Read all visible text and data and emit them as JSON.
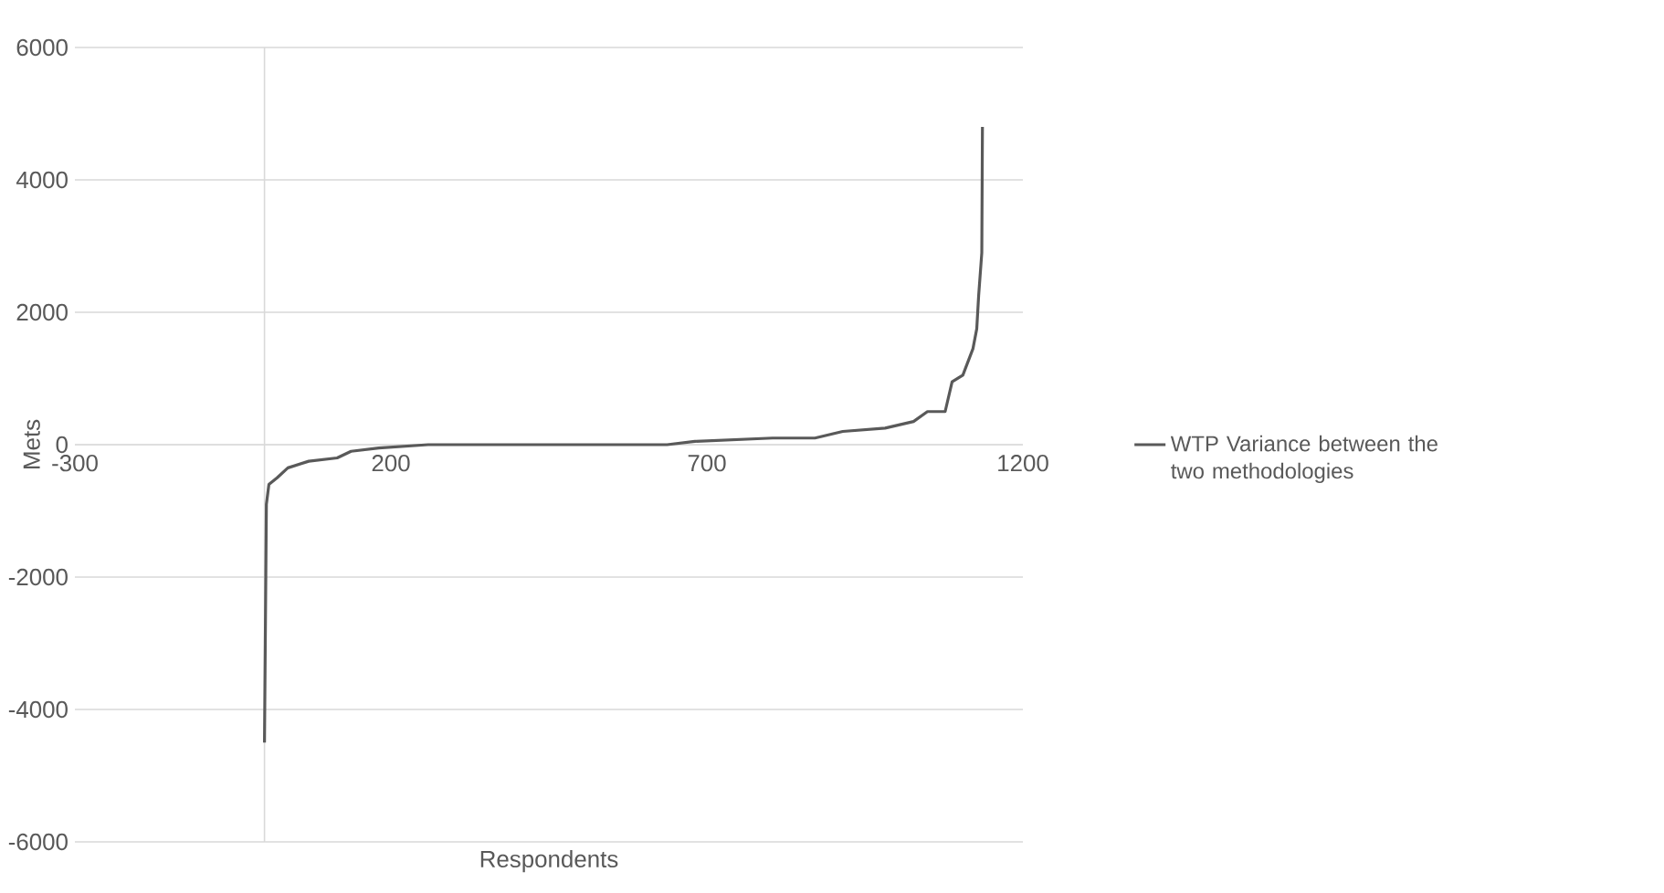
{
  "chart_data": {
    "type": "line",
    "xlabel": "Respondents",
    "ylabel": "Mets",
    "xlim": [
      -300,
      1200
    ],
    "xticks": [
      -300,
      200,
      700,
      1200
    ],
    "ylim": [
      -6000,
      6000
    ],
    "yticks": [
      -6000,
      -4000,
      -2000,
      0,
      2000,
      4000,
      6000
    ],
    "grid": "y",
    "legend": "right",
    "marker": "none",
    "line_style": "solid",
    "series": [
      {
        "name": "WTP Variance between the two methodologies",
        "color": "#595959",
        "x": [
          0,
          3,
          7,
          20,
          37,
          70,
          115,
          137,
          181,
          259,
          637,
          681,
          804,
          871,
          915,
          982,
          1027,
          1049,
          1077,
          1088,
          1105,
          1121,
          1127,
          1130,
          1135,
          1136
        ],
        "values": [
          -4500,
          -900,
          -600,
          -500,
          -350,
          -250,
          -200,
          -100,
          -50,
          0,
          0,
          50,
          100,
          100,
          200,
          250,
          350,
          500,
          500,
          950,
          1050,
          1450,
          1750,
          2250,
          2900,
          4800
        ]
      }
    ]
  }
}
